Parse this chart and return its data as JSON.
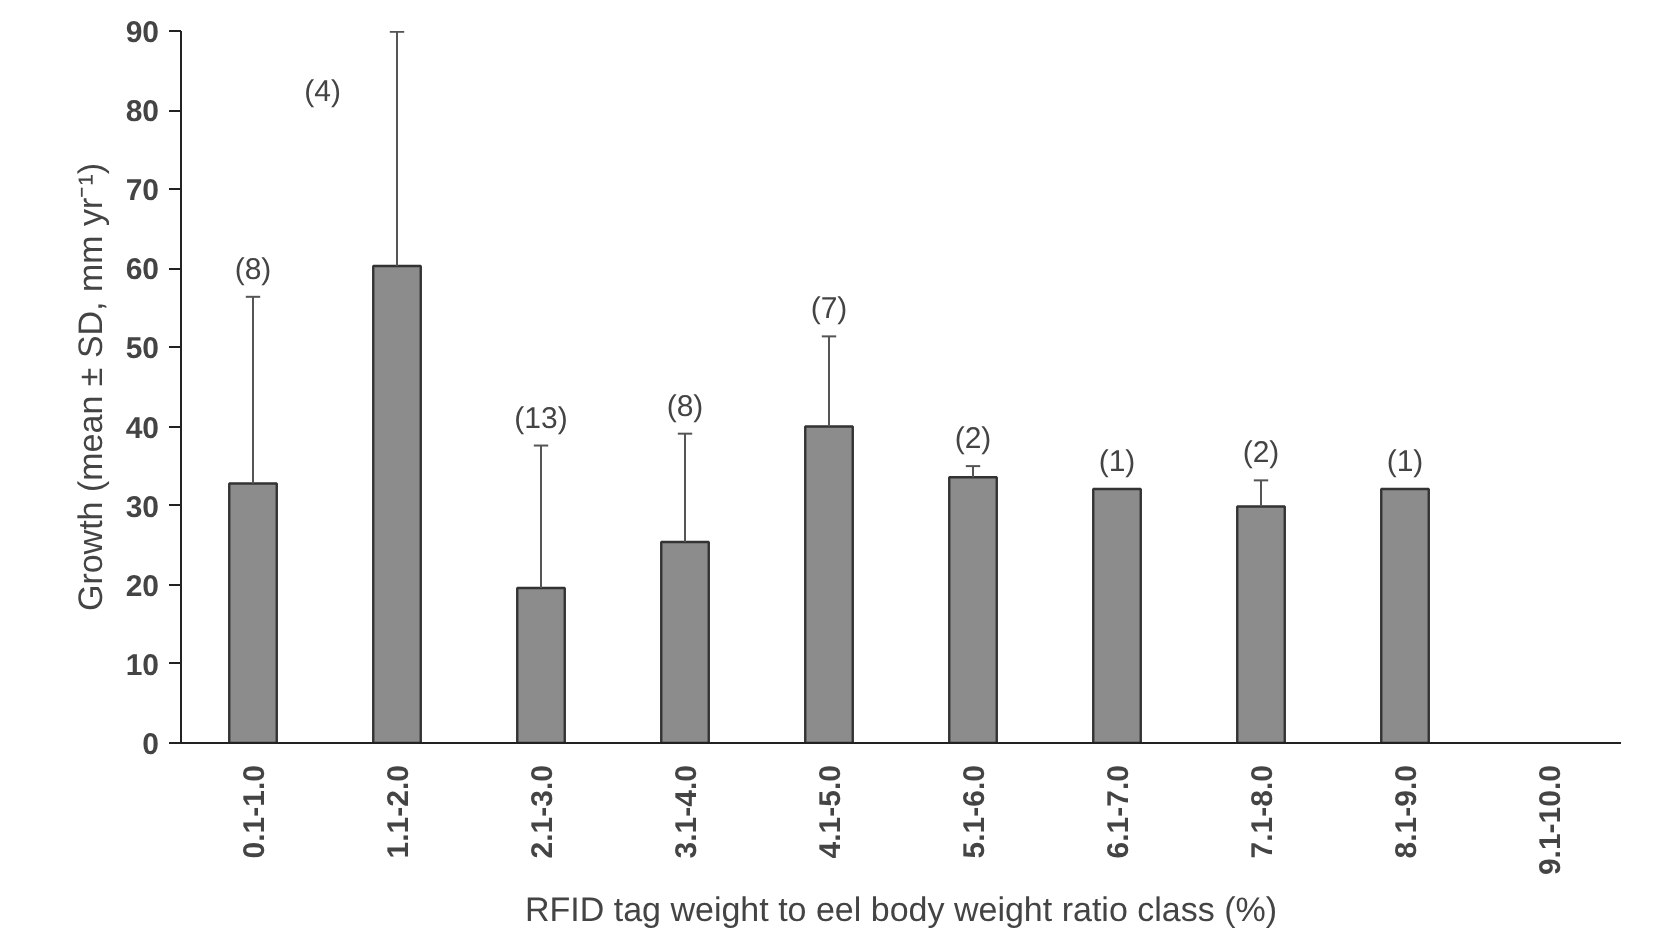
{
  "chart_data": {
    "type": "bar",
    "xlabel": "RFID tag weight to eel body weight ratio class (%)",
    "ylabel": "Growth (mean ± SD, mm yr⁻¹)",
    "categories": [
      "0.1-1.0",
      "1.1-2.0",
      "2.1-3.0",
      "3.1-4.0",
      "4.1-5.0",
      "5.1-6.0",
      "6.1-7.0",
      "7.1-8.0",
      "8.1-9.0",
      "9.1-10.0"
    ],
    "values": [
      32.8,
      60.3,
      19.6,
      25.4,
      40.0,
      33.6,
      32.1,
      29.9,
      32.1,
      null
    ],
    "errors": [
      [
        32.8,
        56.4
      ],
      [
        60.3,
        89.9
      ],
      [
        19.6,
        37.6
      ],
      [
        25.4,
        39.1
      ],
      [
        40.0,
        51.4
      ],
      [
        33.6,
        35.0
      ],
      null,
      [
        29.9,
        33.2
      ],
      null,
      null
    ],
    "color": "#8c8c8c",
    "ylim": [
      0,
      90
    ],
    "yticks": [
      0,
      10,
      20,
      30,
      40,
      50,
      60,
      70,
      80,
      90
    ],
    "grid": false,
    "annotations": [
      "(8)",
      "(4)",
      "(13)",
      "(8)",
      "(7)",
      "(2)",
      "(1)",
      "(2)",
      "(1)"
    ]
  }
}
